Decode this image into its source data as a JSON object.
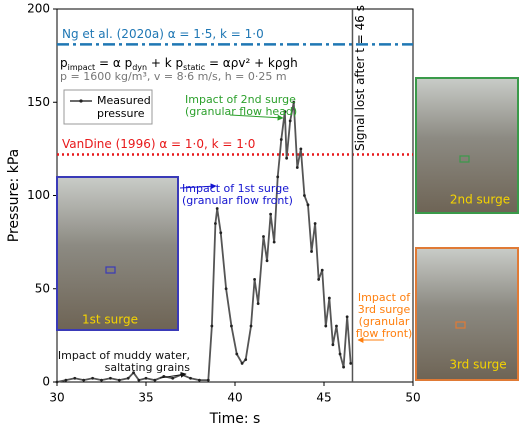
{
  "chart_data": {
    "type": "line",
    "xlabel": "Time: s",
    "ylabel": "Pressure: kPa",
    "xlim": [
      30,
      50
    ],
    "ylim": [
      0,
      200
    ],
    "xticks": [
      30,
      35,
      40,
      45,
      50
    ],
    "yticks": [
      0,
      50,
      100,
      150,
      200
    ],
    "series": [
      {
        "name": "Measured pressure",
        "color": "#555555",
        "x": [
          30,
          30.5,
          31,
          31.5,
          32,
          32.5,
          33,
          33.5,
          34,
          34.3,
          34.6,
          35,
          35.5,
          36,
          36.5,
          37,
          37.5,
          38,
          38.5,
          38.7,
          38.9,
          39.0,
          39.2,
          39.5,
          39.8,
          40.1,
          40.4,
          40.6,
          40.9,
          41.1,
          41.3,
          41.6,
          41.8,
          42.0,
          42.2,
          42.4,
          42.6,
          42.8,
          42.9,
          43.1,
          43.3,
          43.5,
          43.7,
          43.9,
          44.1,
          44.3,
          44.5,
          44.7,
          44.9,
          45.1,
          45.3,
          45.5,
          45.7,
          45.9,
          46.1,
          46.3,
          46.5
        ],
        "values": [
          0,
          1,
          2,
          1,
          2,
          1,
          2,
          1,
          2,
          5,
          1,
          2,
          1,
          3,
          2,
          4,
          2,
          1,
          1,
          30,
          85,
          93,
          80,
          50,
          30,
          15,
          10,
          12,
          30,
          55,
          42,
          78,
          65,
          90,
          75,
          110,
          130,
          145,
          120,
          140,
          150,
          115,
          125,
          100,
          95,
          70,
          85,
          55,
          60,
          30,
          45,
          20,
          30,
          15,
          8,
          35,
          10
        ]
      }
    ],
    "reference_lines": [
      {
        "label": "Ng et al. (2020a) α = 1·5, k = 1·0",
        "value": 181,
        "color": "#1f77b4",
        "style": "dashdot"
      },
      {
        "label": "VanDine (1996) α = 1·0, k = 1·0",
        "value": 122,
        "color": "#e8191b",
        "style": "dotted"
      }
    ],
    "vline": {
      "x": 46.6,
      "label": "Signal lost after t = 46 s"
    },
    "formula": [
      "p",
      "impact",
      " = α p",
      "dyn",
      " + k p",
      "static",
      " = αρv² + kρgh"
    ],
    "parameters": "p = 1600 kg/m³, v = 8·6 m/s, h = 0·25 m",
    "annotations": [
      {
        "lines": [
          "Impact of 2nd surge",
          "(granular flow head)"
        ],
        "color": "#2ca02c"
      },
      {
        "lines": [
          "Impact of 1st surge",
          "(granular flow front)"
        ],
        "color": "#1515d0"
      },
      {
        "lines": [
          "Impact of",
          "3rd surge",
          "(granular",
          "flow front)"
        ],
        "color": "#ff7f0e"
      },
      {
        "lines": [
          "Impact of muddy water,",
          "saltating grains"
        ],
        "color": "#111111"
      }
    ],
    "insets": [
      {
        "label": "1st surge",
        "color": "#3a3ab8"
      },
      {
        "label": "2nd surge",
        "color": "#3a9a4a"
      },
      {
        "label": "3rd surge",
        "color": "#e07a35"
      }
    ]
  }
}
